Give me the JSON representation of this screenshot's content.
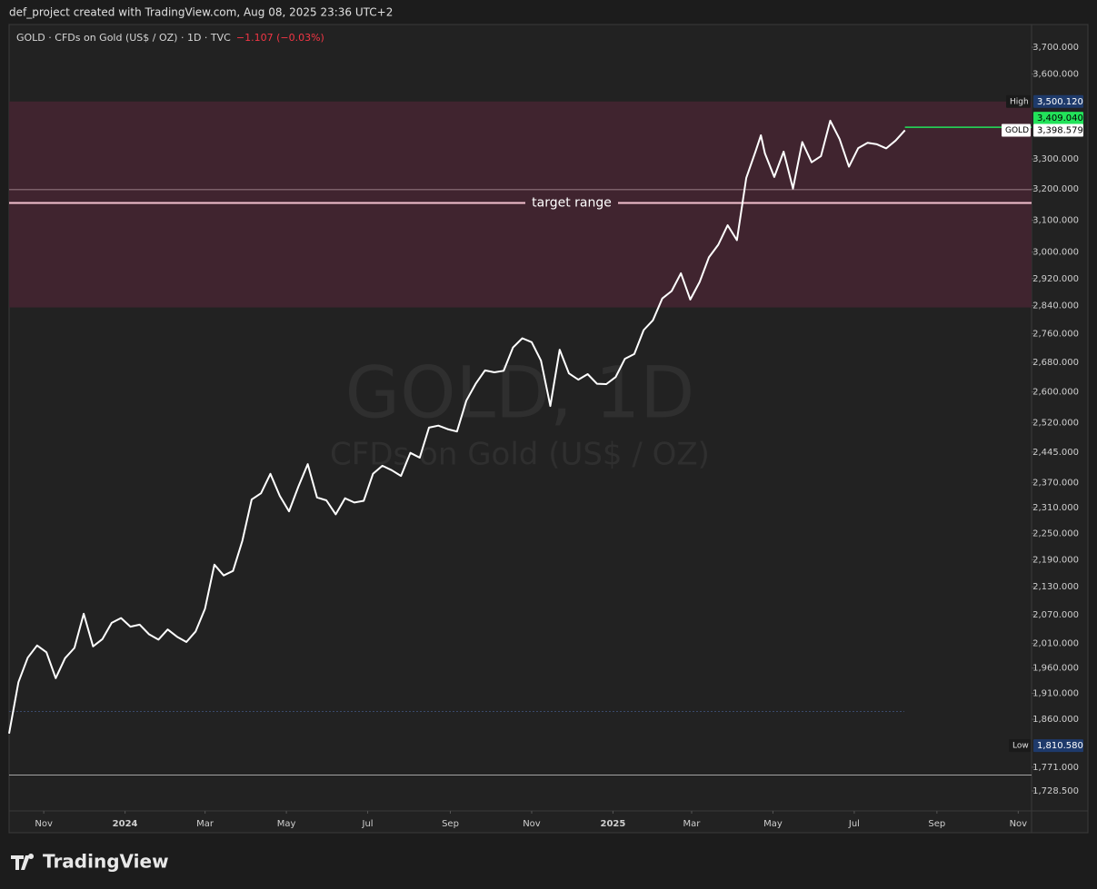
{
  "header": "def_project created with TradingView.com, Aug 08, 2025 23:36 UTC+2",
  "brand": "TradingView",
  "chart_data": {
    "type": "line",
    "symbol": "GOLD · CFDs on Gold (US$ / OZ) · 1D · TVC",
    "change": "−1.107 (−0.03%)",
    "watermark": "GOLD, 1D",
    "watermark_sub": "CFDs on Gold (US$ / OZ)",
    "log_scale": true,
    "xlim": [
      "2023-10-06",
      "2025-11-11"
    ],
    "ylim": [
      1693.5,
      3787
    ],
    "yticks": [
      {
        "value": 3700,
        "label": "3,700.000"
      },
      {
        "value": 3600,
        "label": "3,600.000"
      },
      {
        "value": 3300,
        "label": "3,300.000"
      },
      {
        "value": 3200,
        "label": "3,200.000"
      },
      {
        "value": 3100,
        "label": "3,100.000"
      },
      {
        "value": 3000,
        "label": "3,000.000"
      },
      {
        "value": 2920,
        "label": "2,920.000"
      },
      {
        "value": 2840,
        "label": "2,840.000"
      },
      {
        "value": 2760,
        "label": "2,760.000"
      },
      {
        "value": 2680,
        "label": "2,680.000"
      },
      {
        "value": 2600,
        "label": "2,600.000"
      },
      {
        "value": 2520,
        "label": "2,520.000"
      },
      {
        "value": 2445,
        "label": "2,445.000"
      },
      {
        "value": 2370,
        "label": "2,370.000"
      },
      {
        "value": 2310,
        "label": "2,310.000"
      },
      {
        "value": 2250,
        "label": "2,250.000"
      },
      {
        "value": 2190,
        "label": "2,190.000"
      },
      {
        "value": 2130,
        "label": "2,130.000"
      },
      {
        "value": 2070,
        "label": "2,070.000"
      },
      {
        "value": 2010,
        "label": "2,010.000"
      },
      {
        "value": 1960,
        "label": "1,960.000"
      },
      {
        "value": 1910,
        "label": "1,910.000"
      },
      {
        "value": 1860,
        "label": "1,860.000"
      },
      {
        "value": 1771,
        "label": "1,771.000"
      },
      {
        "value": 1728.5,
        "label": "1,728.500"
      }
    ],
    "xticks": [
      {
        "value": "2023-11-01",
        "label": "Nov"
      },
      {
        "value": "2024-01-01",
        "label": "2024"
      },
      {
        "value": "2024-03-01",
        "label": "Mar"
      },
      {
        "value": "2024-05-01",
        "label": "May"
      },
      {
        "value": "2024-07-01",
        "label": "Jul"
      },
      {
        "value": "2024-09-01",
        "label": "Sep"
      },
      {
        "value": "2024-11-01",
        "label": "Nov"
      },
      {
        "value": "2025-01-01",
        "label": "2025"
      },
      {
        "value": "2025-03-01",
        "label": "Mar"
      },
      {
        "value": "2025-05-01",
        "label": "May"
      },
      {
        "value": "2025-07-01",
        "label": "Jul"
      },
      {
        "value": "2025-09-01",
        "label": "Sep"
      },
      {
        "value": "2025-11-01",
        "label": "Nov"
      }
    ],
    "x": [
      "2023-10-06",
      "2023-10-13",
      "2023-10-20",
      "2023-10-27",
      "2023-11-03",
      "2023-11-10",
      "2023-11-17",
      "2023-11-24",
      "2023-12-01",
      "2023-12-08",
      "2023-12-15",
      "2023-12-22",
      "2023-12-29",
      "2024-01-05",
      "2024-01-12",
      "2024-01-19",
      "2024-01-26",
      "2024-02-02",
      "2024-02-09",
      "2024-02-16",
      "2024-02-23",
      "2024-03-01",
      "2024-03-08",
      "2024-03-15",
      "2024-03-22",
      "2024-03-29",
      "2024-04-05",
      "2024-04-12",
      "2024-04-19",
      "2024-04-26",
      "2024-05-03",
      "2024-05-10",
      "2024-05-17",
      "2024-05-24",
      "2024-05-31",
      "2024-06-07",
      "2024-06-14",
      "2024-06-21",
      "2024-06-28",
      "2024-07-05",
      "2024-07-12",
      "2024-07-19",
      "2024-07-26",
      "2024-08-02",
      "2024-08-09",
      "2024-08-16",
      "2024-08-23",
      "2024-08-30",
      "2024-09-06",
      "2024-09-13",
      "2024-09-20",
      "2024-09-27",
      "2024-10-04",
      "2024-10-11",
      "2024-10-18",
      "2024-10-25",
      "2024-11-01",
      "2024-11-08",
      "2024-11-15",
      "2024-11-22",
      "2024-11-29",
      "2024-12-06",
      "2024-12-13",
      "2024-12-20",
      "2024-12-27",
      "2025-01-03",
      "2025-01-10",
      "2025-01-17",
      "2025-01-24",
      "2025-01-31",
      "2025-02-07",
      "2025-02-14",
      "2025-02-21",
      "2025-02-28",
      "2025-03-07",
      "2025-03-14",
      "2025-03-21",
      "2025-03-28",
      "2025-04-04",
      "2025-04-11",
      "2025-04-18",
      "2025-04-22",
      "2025-04-25",
      "2025-05-02",
      "2025-05-09",
      "2025-05-16",
      "2025-05-23",
      "2025-05-30",
      "2025-06-06",
      "2025-06-13",
      "2025-06-20",
      "2025-06-27",
      "2025-07-04",
      "2025-07-11",
      "2025-07-18",
      "2025-07-25",
      "2025-08-01",
      "2025-08-08"
    ],
    "series": [
      {
        "color": "#ffffff",
        "values": [
          1833,
          1932,
          1981,
          2006,
          1992,
          1940,
          1980,
          2001,
          2072,
          2004,
          2019,
          2053,
          2063,
          2045,
          2049,
          2029,
          2018,
          2039,
          2024,
          2013,
          2035,
          2083,
          2179,
          2155,
          2165,
          2233,
          2329,
          2344,
          2391,
          2338,
          2301,
          2360,
          2415,
          2334,
          2327,
          2294,
          2332,
          2322,
          2326,
          2391,
          2411,
          2400,
          2386,
          2443,
          2431,
          2507,
          2512,
          2503,
          2497,
          2577,
          2622,
          2658,
          2653,
          2657,
          2721,
          2747,
          2736,
          2685,
          2563,
          2715,
          2650,
          2633,
          2648,
          2622,
          2621,
          2640,
          2690,
          2703,
          2770,
          2798,
          2861,
          2883,
          2936,
          2858,
          2910,
          2984,
          3023,
          3084,
          3037,
          3237,
          3327,
          3381,
          3319,
          3240,
          3325,
          3202,
          3358,
          3289,
          3310,
          3432,
          3368,
          3274,
          3337,
          3355,
          3350,
          3336,
          3363,
          3398.579
        ]
      }
    ],
    "zone": {
      "top": 3500,
      "bottom": 2835,
      "mid": 3155,
      "edge": 3198,
      "label": "target range"
    },
    "lines": [
      1757,
      1875
    ],
    "price_line": {
      "value": 3409.04,
      "label": "3,409.040",
      "color": "#22e35a"
    },
    "high": {
      "name": "High",
      "value": 3500.12,
      "label": "3,500.120"
    },
    "low": {
      "name": "Low",
      "value": 1810.58,
      "label": "1,810.580"
    },
    "last": {
      "name": "GOLD",
      "value": 3398.579,
      "label": "3,398.579"
    }
  }
}
